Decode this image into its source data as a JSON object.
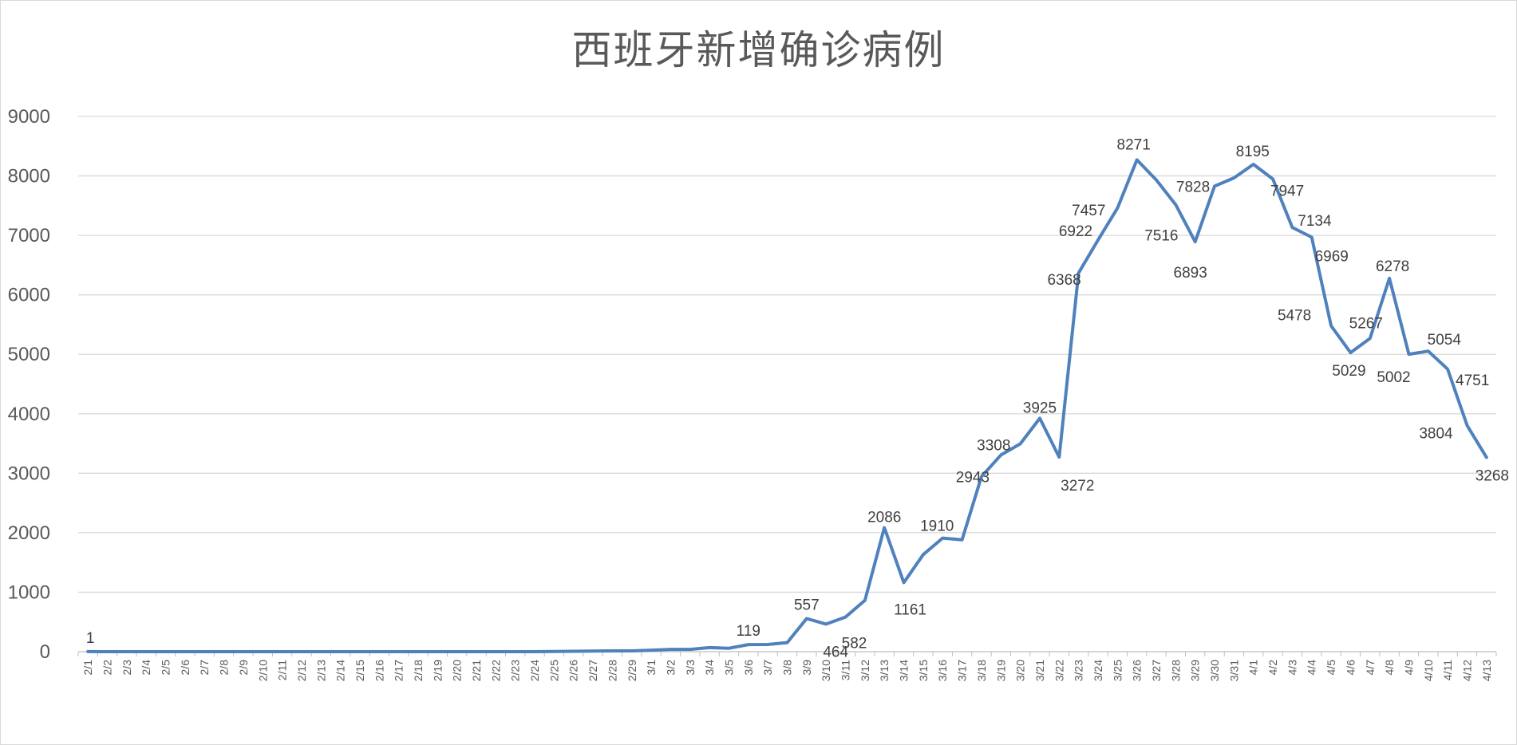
{
  "chart_data": {
    "type": "line",
    "title": "西班牙新增确诊病例",
    "xlabel": "",
    "ylabel": "",
    "ylim": [
      0,
      9000
    ],
    "yticks": [
      0,
      1000,
      2000,
      3000,
      4000,
      5000,
      6000,
      7000,
      8000,
      9000
    ],
    "grid": true,
    "legend": "none",
    "line_color": "#4f81bd",
    "categories": [
      "2/1",
      "2/2",
      "2/3",
      "2/4",
      "2/5",
      "2/6",
      "2/7",
      "2/8",
      "2/9",
      "2/10",
      "2/11",
      "2/12",
      "2/13",
      "2/14",
      "2/15",
      "2/16",
      "2/17",
      "2/18",
      "2/19",
      "2/20",
      "2/21",
      "2/22",
      "2/23",
      "2/24",
      "2/25",
      "2/26",
      "2/27",
      "2/28",
      "2/29",
      "3/1",
      "3/2",
      "3/3",
      "3/4",
      "3/5",
      "3/6",
      "3/7",
      "3/8",
      "3/9",
      "3/10",
      "3/11",
      "3/12",
      "3/13",
      "3/14",
      "3/15",
      "3/16",
      "3/17",
      "3/18",
      "3/19",
      "3/20",
      "3/21",
      "3/22",
      "3/23",
      "3/24",
      "3/25",
      "3/26",
      "3/27",
      "3/28",
      "3/29",
      "3/30",
      "3/31",
      "4/1",
      "4/2",
      "4/3",
      "4/4",
      "4/5",
      "4/6",
      "4/7",
      "4/8",
      "4/9",
      "4/10",
      "4/11",
      "4/12",
      "4/13"
    ],
    "series": [
      {
        "values": [
          1,
          0,
          0,
          0,
          0,
          0,
          0,
          0,
          0,
          0,
          0,
          0,
          0,
          0,
          0,
          0,
          0,
          0,
          0,
          0,
          0,
          0,
          0,
          0,
          4,
          7,
          10,
          13,
          13,
          25,
          39,
          39,
          68,
          58,
          119,
          121,
          153,
          557,
          464,
          582,
          864,
          2086,
          1161,
          1632,
          1910,
          1882,
          2943,
          3308,
          3495,
          3925,
          3272,
          6368,
          6922,
          7457,
          8271,
          7933,
          7516,
          6893,
          7828,
          7967,
          8195,
          7947,
          7134,
          6969,
          5478,
          5029,
          5267,
          6278,
          5002,
          5054,
          4751,
          3804,
          3268
        ]
      }
    ],
    "data_labels": [
      {
        "index": 0,
        "text": "1"
      },
      {
        "index": 34,
        "text": "119"
      },
      {
        "index": 37,
        "text": "557"
      },
      {
        "index": 38,
        "text": "464"
      },
      {
        "index": 39,
        "text": "582"
      },
      {
        "index": 41,
        "text": "2086"
      },
      {
        "index": 42,
        "text": "1161"
      },
      {
        "index": 44,
        "text": "1910"
      },
      {
        "index": 46,
        "text": "2943"
      },
      {
        "index": 47,
        "text": "3308"
      },
      {
        "index": 49,
        "text": "3925"
      },
      {
        "index": 50,
        "text": "3272"
      },
      {
        "index": 51,
        "text": "6368"
      },
      {
        "index": 52,
        "text": "6922"
      },
      {
        "index": 53,
        "text": "7457"
      },
      {
        "index": 54,
        "text": "8271"
      },
      {
        "index": 56,
        "text": "7516"
      },
      {
        "index": 57,
        "text": "6893"
      },
      {
        "index": 58,
        "text": "7828"
      },
      {
        "index": 60,
        "text": "8195"
      },
      {
        "index": 61,
        "text": "7947"
      },
      {
        "index": 62,
        "text": "7134"
      },
      {
        "index": 63,
        "text": "6969"
      },
      {
        "index": 64,
        "text": "5478"
      },
      {
        "index": 65,
        "text": "5029"
      },
      {
        "index": 66,
        "text": "5267"
      },
      {
        "index": 67,
        "text": "6278"
      },
      {
        "index": 68,
        "text": "5002"
      },
      {
        "index": 69,
        "text": "5054"
      },
      {
        "index": 70,
        "text": "4751"
      },
      {
        "index": 71,
        "text": "3804"
      },
      {
        "index": 72,
        "text": "3268"
      }
    ]
  }
}
